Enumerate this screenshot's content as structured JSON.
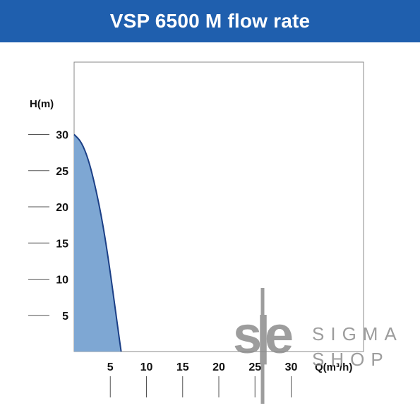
{
  "title": "VSP 6500 M flow rate",
  "chart_data": {
    "type": "area",
    "title": "VSP 6500 M flow rate",
    "xlabel": "Q(m³/h)",
    "ylabel": "H(m)",
    "xlim": [
      0,
      40
    ],
    "ylim": [
      0,
      40
    ],
    "x_ticks": [
      5,
      10,
      15,
      20,
      25,
      30
    ],
    "y_ticks": [
      5,
      10,
      15,
      20,
      25,
      30
    ],
    "series": [
      {
        "x": [
          0,
          1,
          2,
          3,
          4,
          5,
          6,
          6.5
        ],
        "y": [
          30,
          29,
          26.5,
          22.5,
          17.5,
          11,
          3.5,
          0
        ]
      }
    ],
    "colors": {
      "fill": "#7ea7d3",
      "stroke": "#1b3f86",
      "title_bar": "#1f5fae"
    },
    "grid": false
  },
  "watermark": {
    "logo_text": "s|e",
    "line1": "SIGMA",
    "line2": "SHOP"
  }
}
